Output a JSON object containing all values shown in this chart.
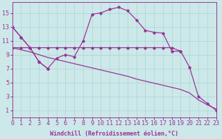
{
  "background_color": "#cce8e8",
  "grid_color": "#aad4d4",
  "line_color": "#993399",
  "xlim": [
    0,
    23
  ],
  "ylim": [
    0,
    16.5
  ],
  "xticks": [
    0,
    1,
    2,
    3,
    4,
    5,
    6,
    7,
    8,
    9,
    10,
    11,
    12,
    13,
    14,
    15,
    16,
    17,
    18,
    19,
    20,
    21,
    22,
    23
  ],
  "yticks": [
    1,
    3,
    5,
    7,
    9,
    11,
    13,
    15
  ],
  "xlabel": "Windchill (Refroidissement éolien,°C)",
  "curve_top_x": [
    0,
    1,
    2,
    3,
    4,
    5,
    6,
    7,
    8,
    9,
    10,
    11,
    12,
    13,
    14,
    15,
    16,
    17,
    18,
    19
  ],
  "curve_top_y": [
    13,
    11.5,
    10,
    8,
    7,
    8.5,
    9,
    8.7,
    11,
    14.8,
    15,
    15.5,
    15.8,
    15.3,
    14,
    12.5,
    12.2,
    12.1,
    9.5,
    9.5
  ],
  "curve_flat_x": [
    0,
    1,
    2,
    3,
    4,
    5,
    6,
    7,
    8,
    9,
    10,
    11,
    12,
    13,
    14,
    15,
    16,
    17,
    18,
    19,
    20,
    21,
    22,
    23
  ],
  "curve_flat_y": [
    10,
    10,
    10,
    10,
    10,
    10,
    10,
    10,
    10,
    10,
    10,
    10,
    10,
    10,
    10,
    10,
    10,
    10,
    10,
    9.5,
    7.2,
    3,
    2,
    1
  ],
  "curve_diag_x": [
    0,
    1,
    2,
    3,
    4,
    5,
    6,
    7,
    8,
    9,
    10,
    11,
    12,
    13,
    14,
    15,
    16,
    17,
    18,
    19,
    20,
    21,
    22,
    23
  ],
  "curve_diag_y": [
    10,
    9.7,
    9.4,
    9.0,
    8.6,
    8.3,
    8.0,
    7.7,
    7.4,
    7.1,
    6.8,
    6.5,
    6.2,
    5.9,
    5.5,
    5.2,
    4.9,
    4.6,
    4.3,
    4.0,
    3.5,
    2.5,
    1.8,
    1.2
  ],
  "curve_short_x": [
    0,
    1,
    2,
    3,
    4
  ],
  "curve_short_y": [
    13,
    11.5,
    10,
    8,
    7
  ],
  "font_size_label": 6,
  "font_size_tick": 6,
  "marker": "D",
  "marker_size": 1.8,
  "lw": 0.9
}
